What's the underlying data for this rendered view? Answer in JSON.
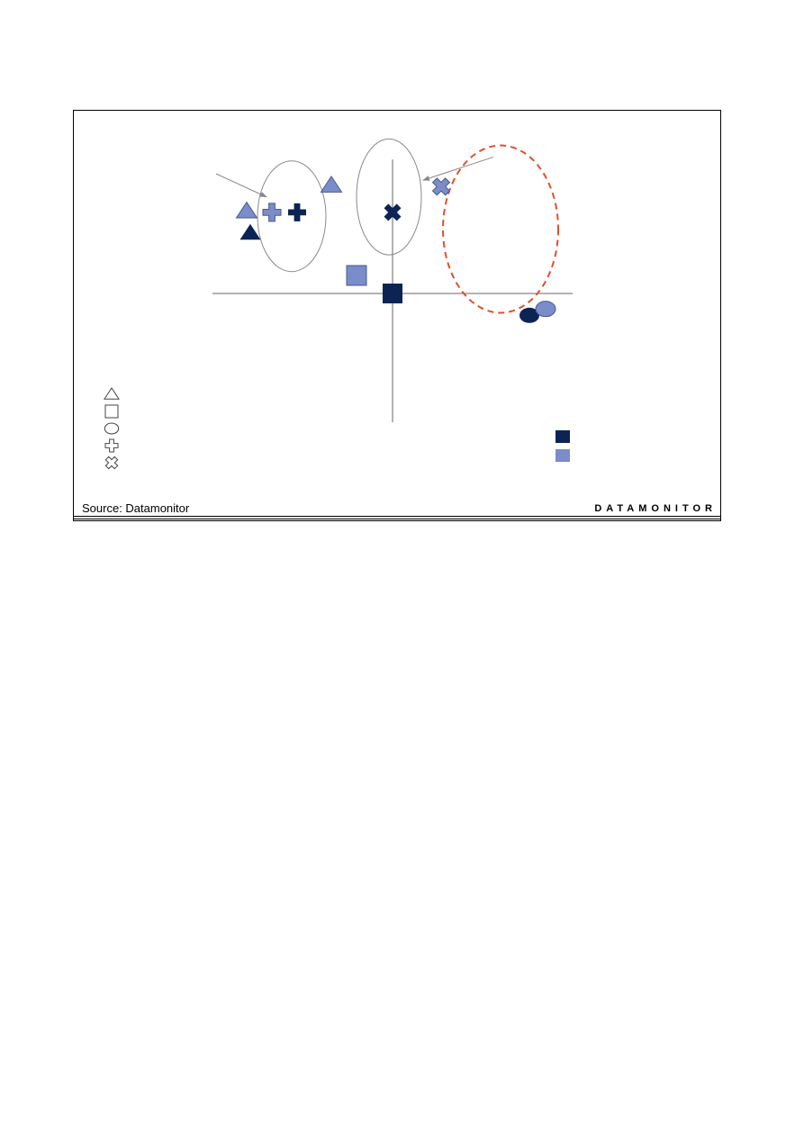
{
  "chart_data": {
    "type": "scatter",
    "title": "",
    "xlabel": "",
    "ylabel": "",
    "xlim": [
      -10,
      10
    ],
    "ylim": [
      -10,
      10
    ],
    "grid": false,
    "legend_placement": "bottom-left",
    "colors": {
      "dark": "#0b2454",
      "light": "#7a8cc9",
      "dashed_circle": "#e0502a",
      "axis": "#666666"
    },
    "points": [
      {
        "shape": "triangle",
        "shade": "light",
        "x": -8.1,
        "y": 6.4
      },
      {
        "shape": "triangle",
        "shade": "dark",
        "x": -7.9,
        "y": 4.7
      },
      {
        "shape": "triangle",
        "shade": "light",
        "x": -3.4,
        "y": 8.4
      },
      {
        "shape": "plus",
        "shade": "light",
        "x": -6.7,
        "y": 6.3
      },
      {
        "shape": "plus",
        "shade": "dark",
        "x": -5.3,
        "y": 6.3
      },
      {
        "shape": "cross",
        "shade": "dark",
        "x": 0.0,
        "y": 6.3
      },
      {
        "shape": "cross",
        "shade": "light",
        "x": 2.7,
        "y": 8.3
      },
      {
        "shape": "square",
        "shade": "light",
        "x": -2.0,
        "y": 1.4
      },
      {
        "shape": "square",
        "shade": "dark",
        "x": 0.0,
        "y": 0.0
      },
      {
        "shape": "circle",
        "shade": "dark",
        "x": 7.6,
        "y": -1.7
      },
      {
        "shape": "circle",
        "shade": "light",
        "x": 8.5,
        "y": -1.2
      }
    ],
    "highlight_circles": [
      {
        "style": "solid",
        "cx": -5.6,
        "cy": 6.0,
        "rx": 1.9,
        "ry": 4.3
      },
      {
        "style": "solid",
        "cx": -0.2,
        "cy": 7.5,
        "rx": 1.8,
        "ry": 4.5
      },
      {
        "style": "dashed",
        "cx": 6.0,
        "cy": 5.0,
        "rx": 3.2,
        "ry": 6.5
      }
    ],
    "arrows": [
      {
        "from": [
          -9.8,
          9.3
        ],
        "to": [
          -7.0,
          7.5
        ]
      },
      {
        "from": [
          5.6,
          10.6
        ],
        "to": [
          1.7,
          8.8
        ]
      }
    ],
    "legend_shapes": [
      "triangle",
      "square",
      "circle",
      "plus",
      "cross"
    ],
    "legend_shades": [
      "dark",
      "light"
    ]
  },
  "footer": {
    "source": "Source: Datamonitor",
    "brand": "DATAMONITOR"
  }
}
